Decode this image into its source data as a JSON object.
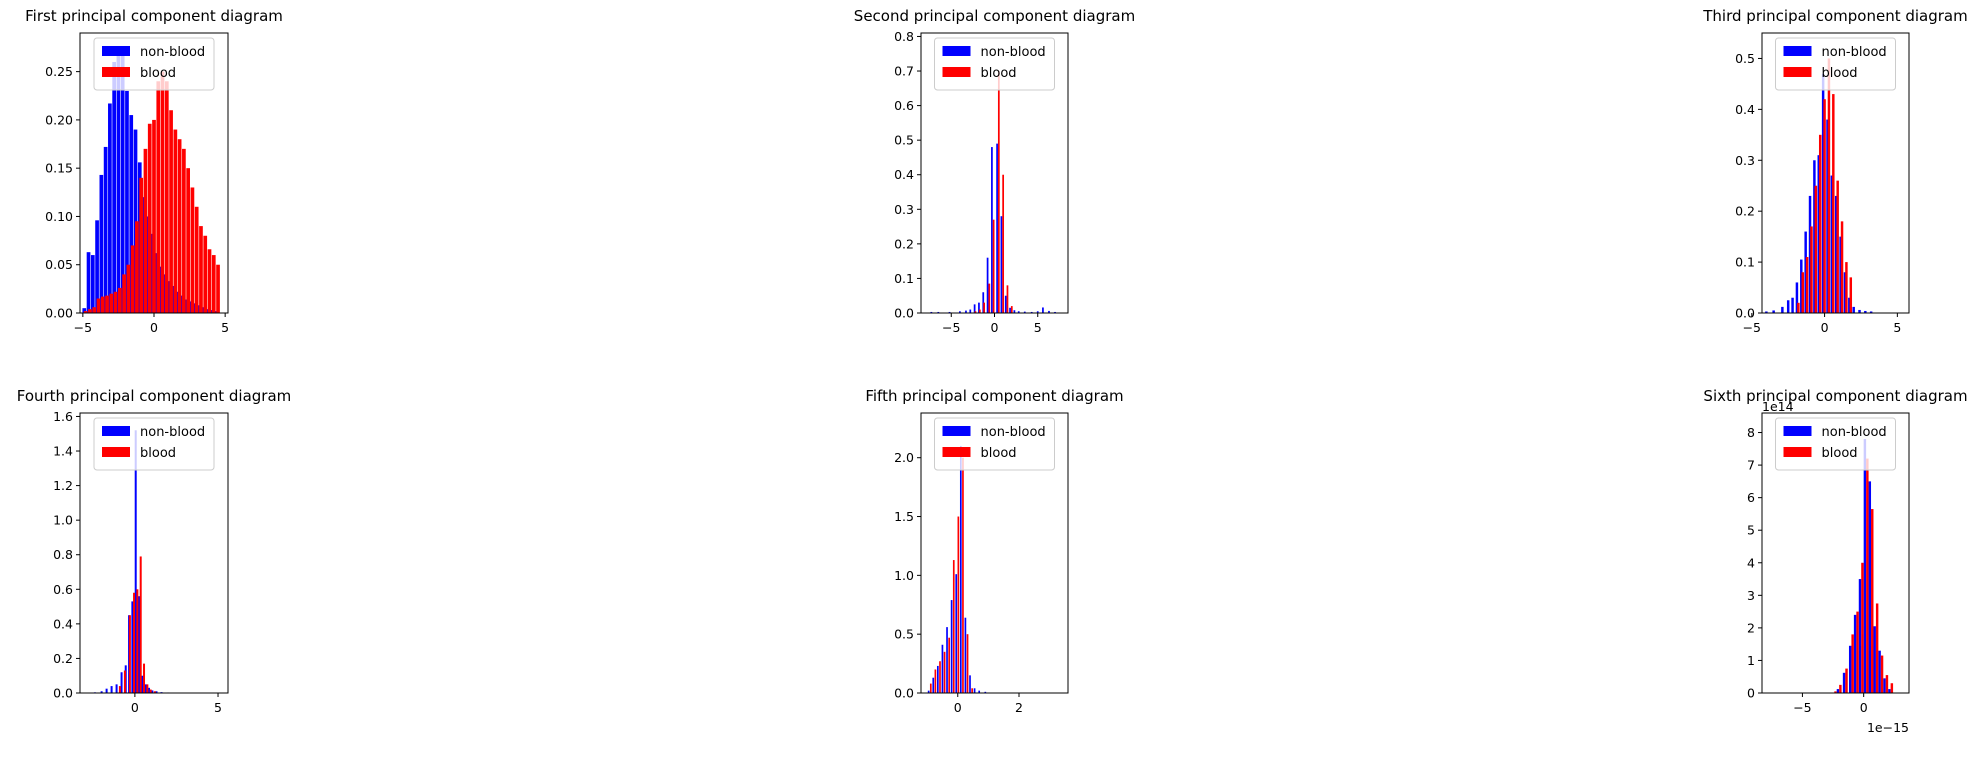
{
  "chart_data": [
    {
      "type": "bar",
      "title": "First principal component diagram",
      "xlim": [
        -5.2,
        5.2
      ],
      "ylim": [
        0,
        0.29
      ],
      "xticks": [
        -5,
        0,
        5
      ],
      "xtick_labels": [
        "−5",
        "0",
        "5"
      ],
      "yticks": [
        0,
        0.05,
        0.1,
        0.15,
        0.2,
        0.25
      ],
      "ytick_labels": [
        "0.00",
        "0.05",
        "0.10",
        "0.15",
        "0.20",
        "0.25"
      ],
      "bin_width": 0.26,
      "legend_loc": "upper center",
      "series": [
        {
          "name": "non-blood",
          "color": "#0000ff",
          "x": [
            -4.9,
            -4.6,
            -4.3,
            -4.0,
            -3.7,
            -3.4,
            -3.1,
            -2.8,
            -2.5,
            -2.2,
            -1.9,
            -1.6,
            -1.3,
            -1.0,
            -0.7,
            -0.4,
            -0.1,
            0.2,
            0.5,
            0.8,
            1.1,
            1.4,
            1.7,
            2.0,
            2.3,
            2.6,
            2.9,
            3.2,
            3.5,
            3.8,
            4.1,
            4.4
          ],
          "values": [
            0.005,
            0.063,
            0.06,
            0.096,
            0.143,
            0.172,
            0.217,
            0.26,
            0.27,
            0.268,
            0.23,
            0.205,
            0.19,
            0.156,
            0.12,
            0.1,
            0.082,
            0.062,
            0.048,
            0.04,
            0.033,
            0.028,
            0.022,
            0.018,
            0.014,
            0.012,
            0.01,
            0.008,
            0.006,
            0.004,
            0.003,
            0.002
          ]
        },
        {
          "name": "blood",
          "color": "#ff0000",
          "x": [
            -4.8,
            -4.5,
            -4.2,
            -3.9,
            -3.6,
            -3.3,
            -3.0,
            -2.7,
            -2.4,
            -2.1,
            -1.8,
            -1.5,
            -1.2,
            -0.9,
            -0.6,
            -0.3,
            0.0,
            0.3,
            0.6,
            0.9,
            1.2,
            1.5,
            1.8,
            2.1,
            2.4,
            2.7,
            3.0,
            3.3,
            3.6,
            3.9,
            4.2,
            4.5
          ],
          "values": [
            0.002,
            0.004,
            0.006,
            0.015,
            0.017,
            0.018,
            0.02,
            0.022,
            0.026,
            0.04,
            0.05,
            0.07,
            0.095,
            0.14,
            0.17,
            0.196,
            0.2,
            0.24,
            0.25,
            0.24,
            0.21,
            0.19,
            0.18,
            0.17,
            0.15,
            0.13,
            0.11,
            0.09,
            0.08,
            0.066,
            0.06,
            0.05
          ]
        }
      ]
    },
    {
      "type": "bar",
      "title": "Second principal component diagram",
      "xlim": [
        -8.5,
        8.5
      ],
      "ylim": [
        0,
        0.81
      ],
      "xticks": [
        -5,
        0,
        5
      ],
      "xtick_labels": [
        "−5",
        "0",
        "5"
      ],
      "yticks": [
        0,
        0.1,
        0.2,
        0.3,
        0.4,
        0.5,
        0.6,
        0.7,
        0.8
      ],
      "ytick_labels": [
        "0.0",
        "0.1",
        "0.2",
        "0.3",
        "0.4",
        "0.5",
        "0.6",
        "0.7",
        "0.8"
      ],
      "bin_width": 0.2,
      "legend_loc": "upper center",
      "series": [
        {
          "name": "non-blood",
          "color": "#0000ff",
          "x": [
            -7.3,
            -6.5,
            -5.2,
            -4.0,
            -3.3,
            -2.8,
            -2.3,
            -1.8,
            -1.3,
            -0.8,
            -0.3,
            0.3,
            0.8,
            1.3,
            1.8,
            2.3,
            2.8,
            3.5,
            4.3,
            5.0,
            5.6,
            6.3,
            7.0
          ],
          "values": [
            0.003,
            0.003,
            0.003,
            0.005,
            0.007,
            0.01,
            0.025,
            0.03,
            0.06,
            0.16,
            0.48,
            0.49,
            0.28,
            0.05,
            0.015,
            0.008,
            0.005,
            0.004,
            0.003,
            0.005,
            0.016,
            0.006,
            0.003
          ]
        },
        {
          "name": "blood",
          "color": "#ff0000",
          "x": [
            -2.2,
            -1.7,
            -1.2,
            -0.6,
            -0.1,
            0.5,
            1.0,
            1.5,
            2.0
          ],
          "values": [
            0.005,
            0.01,
            0.03,
            0.085,
            0.27,
            0.7,
            0.4,
            0.08,
            0.02
          ]
        }
      ]
    },
    {
      "type": "bar",
      "title": "Third principal component diagram",
      "xlim": [
        -4.3,
        5.8
      ],
      "ylim": [
        0,
        0.55
      ],
      "xticks": [
        -5,
        0,
        5
      ],
      "xtick_labels": [
        "−5",
        "0",
        "5"
      ],
      "yticks": [
        0,
        0.1,
        0.2,
        0.3,
        0.4,
        0.5
      ],
      "ytick_labels": [
        "0.0",
        "0.1",
        "0.2",
        "0.3",
        "0.4",
        "0.5"
      ],
      "bin_width": 0.17,
      "legend_loc": "upper center",
      "series": [
        {
          "name": "non-blood",
          "color": "#0000ff",
          "x": [
            -4.0,
            -3.5,
            -2.9,
            -2.5,
            -2.2,
            -1.9,
            -1.6,
            -1.3,
            -1.0,
            -0.7,
            -0.4,
            -0.1,
            0.2,
            0.5,
            0.8,
            1.1,
            1.4,
            1.7,
            2.0,
            2.4,
            2.8,
            3.2
          ],
          "values": [
            0.003,
            0.005,
            0.012,
            0.025,
            0.03,
            0.06,
            0.105,
            0.16,
            0.23,
            0.3,
            0.31,
            0.47,
            0.38,
            0.27,
            0.23,
            0.15,
            0.08,
            0.03,
            0.012,
            0.006,
            0.004,
            0.003
          ]
        },
        {
          "name": "blood",
          "color": "#ff0000",
          "x": [
            -1.8,
            -1.5,
            -1.2,
            -0.9,
            -0.6,
            -0.3,
            0.0,
            0.3,
            0.6,
            0.9,
            1.2,
            1.5,
            1.8
          ],
          "values": [
            0.02,
            0.08,
            0.11,
            0.17,
            0.25,
            0.35,
            0.42,
            0.5,
            0.43,
            0.26,
            0.18,
            0.1,
            0.07
          ]
        }
      ]
    },
    {
      "type": "bar",
      "title": "Fourth principal component diagram",
      "xlim": [
        -3.3,
        5.6
      ],
      "ylim": [
        0,
        1.62
      ],
      "xticks": [
        0,
        5
      ],
      "xtick_labels": [
        "0",
        "5"
      ],
      "yticks": [
        0,
        0.2,
        0.4,
        0.6,
        0.8,
        1.0,
        1.2,
        1.4,
        1.6
      ],
      "ytick_labels": [
        "0.0",
        "0.2",
        "0.4",
        "0.6",
        "0.8",
        "1.0",
        "1.2",
        "1.4",
        "1.6"
      ],
      "bin_width": 0.12,
      "legend_loc": "upper center",
      "series": [
        {
          "name": "non-blood",
          "color": "#0000ff",
          "x": [
            -2.4,
            -2.0,
            -1.7,
            -1.4,
            -1.1,
            -0.8,
            -0.55,
            -0.35,
            -0.15,
            0.05,
            0.25,
            0.45,
            0.65,
            0.85,
            1.05,
            1.3,
            1.6,
            2.0
          ],
          "values": [
            0.004,
            0.01,
            0.025,
            0.04,
            0.05,
            0.12,
            0.16,
            0.45,
            0.53,
            1.52,
            0.56,
            0.1,
            0.05,
            0.03,
            0.015,
            0.01,
            0.005,
            0.003
          ]
        },
        {
          "name": "blood",
          "color": "#ff0000",
          "x": [
            -0.9,
            -0.6,
            -0.3,
            -0.05,
            0.15,
            0.35,
            0.55,
            0.75,
            0.95,
            1.2
          ],
          "values": [
            0.04,
            0.13,
            0.45,
            0.58,
            0.6,
            0.79,
            0.17,
            0.05,
            0.02,
            0.01
          ]
        }
      ]
    },
    {
      "type": "bar",
      "title": "Fifth principal component diagram",
      "xlim": [
        -1.2,
        3.6
      ],
      "ylim": [
        0,
        2.38
      ],
      "xticks": [
        0,
        2
      ],
      "xtick_labels": [
        "0",
        "2"
      ],
      "yticks": [
        0,
        0.5,
        1.0,
        1.5,
        2.0
      ],
      "ytick_labels": [
        "0.0",
        "0.5",
        "1.0",
        "1.5",
        "2.0"
      ],
      "bin_width": 0.055,
      "legend_loc": "upper center",
      "series": [
        {
          "name": "non-blood",
          "color": "#0000ff",
          "x": [
            -0.95,
            -0.8,
            -0.65,
            -0.5,
            -0.35,
            -0.2,
            -0.05,
            0.1,
            0.25,
            0.4,
            0.55,
            0.7,
            0.9
          ],
          "values": [
            0.02,
            0.13,
            0.23,
            0.41,
            0.56,
            0.79,
            1.01,
            2.1,
            0.64,
            0.15,
            0.04,
            0.02,
            0.01
          ]
        },
        {
          "name": "blood",
          "color": "#ff0000",
          "x": [
            -0.88,
            -0.73,
            -0.58,
            -0.43,
            -0.28,
            -0.13,
            0.02,
            0.17,
            0.32,
            0.47
          ],
          "values": [
            0.08,
            0.2,
            0.27,
            0.35,
            0.47,
            1.13,
            1.5,
            2.0,
            0.5,
            0.04
          ]
        }
      ]
    },
    {
      "type": "bar",
      "title": "Sixth principal component diagram",
      "xlim": [
        -8.3,
        3.7
      ],
      "ylim": [
        0,
        8.6
      ],
      "xticks": [
        -5,
        0
      ],
      "xtick_labels": [
        "−5",
        "0"
      ],
      "yticks": [
        0,
        1,
        2,
        3,
        4,
        5,
        6,
        7,
        8
      ],
      "ytick_labels": [
        "0",
        "1",
        "2",
        "3",
        "4",
        "5",
        "6",
        "7",
        "8"
      ],
      "x_offset_label": "1e−15",
      "y_offset_label": "1e14",
      "bin_width": 0.2,
      "legend_loc": "upper center",
      "series": [
        {
          "name": "non-blood",
          "color": "#0000ff",
          "x": [
            -2.1,
            -1.6,
            -1.1,
            -0.7,
            -0.3,
            0.1,
            0.5,
            0.9,
            1.3,
            1.7,
            2.1
          ],
          "values": [
            0.12,
            0.62,
            1.45,
            2.4,
            3.5,
            7.8,
            6.5,
            2.05,
            1.3,
            0.45,
            0.12
          ]
        },
        {
          "name": "blood",
          "color": "#ff0000",
          "x": [
            -2.3,
            -1.9,
            -1.4,
            -0.9,
            -0.5,
            -0.1,
            0.3,
            0.7,
            1.1,
            1.5,
            1.9,
            2.3
          ],
          "values": [
            0.05,
            0.25,
            0.75,
            1.8,
            2.5,
            4.0,
            7.2,
            5.65,
            2.75,
            1.15,
            0.55,
            0.3
          ]
        }
      ]
    }
  ]
}
